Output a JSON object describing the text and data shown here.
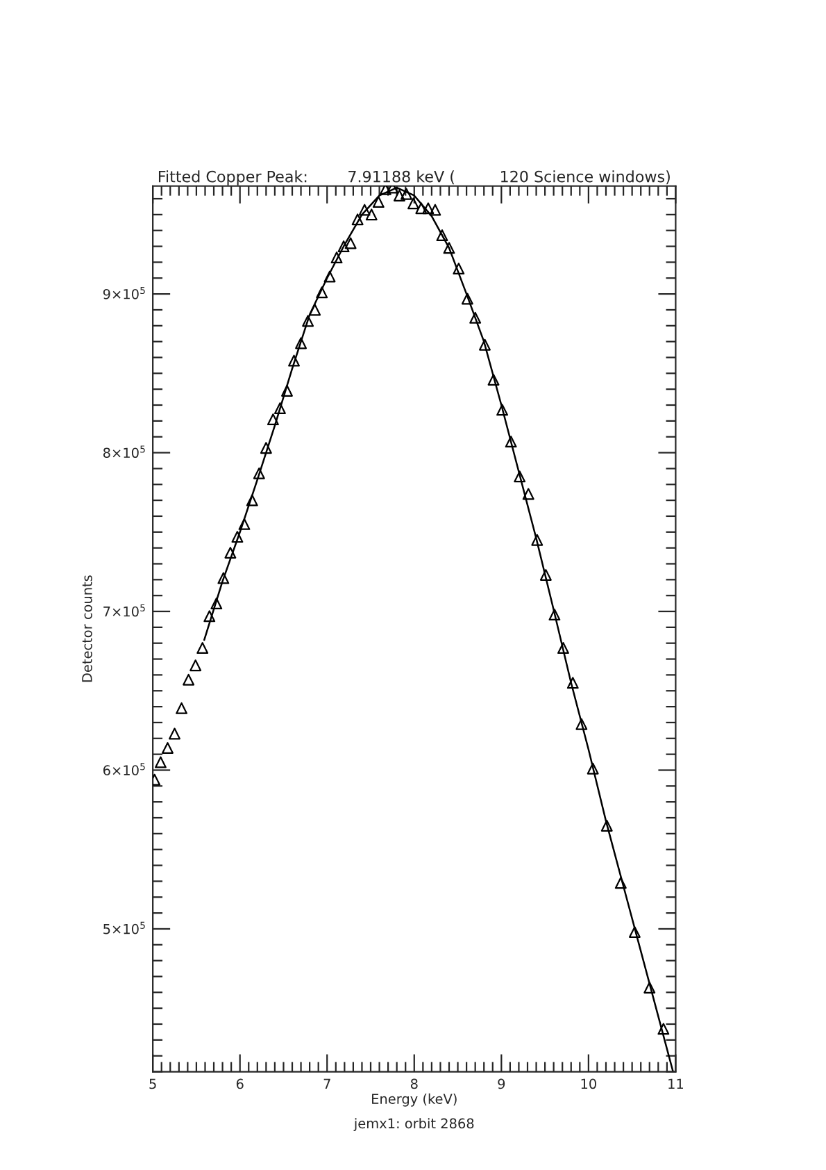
{
  "chart_data": {
    "type": "scatter",
    "title": "Fitted Copper Peak:        7.91188 keV (         120 Science windows)",
    "xlabel": "Energy (keV)",
    "ylabel": "Detector counts",
    "annotations": [
      "jemx1: orbit 2868"
    ],
    "xlim": [
      5,
      11
    ],
    "xticks": [
      5,
      6,
      7,
      8,
      9,
      10,
      11
    ],
    "ylim": [
      410000,
      968000
    ],
    "yticks": [
      {
        "value": 500000,
        "label": "5×10$^{5}$"
      },
      {
        "value": 600000,
        "label": "6×10$^{5}$"
      },
      {
        "value": 700000,
        "label": "7×10$^{5}$"
      },
      {
        "value": 800000,
        "label": "8×10$^{5}$"
      },
      {
        "value": 900000,
        "label": "9×10$^{5}$"
      }
    ],
    "grid": false,
    "legend": false,
    "marker": "triangle",
    "series": [
      {
        "color": "#000000",
        "x": [
          5.02,
          5.09,
          5.17,
          5.25,
          5.33,
          5.41,
          5.49,
          5.57,
          5.65,
          5.73,
          5.81,
          5.89,
          5.97,
          6.05,
          6.14,
          6.22,
          6.3,
          6.38,
          6.46,
          6.54,
          6.62,
          6.7,
          6.78,
          6.86,
          6.94,
          7.03,
          7.11,
          7.19,
          7.27,
          7.35,
          7.43,
          7.51,
          7.59,
          7.67,
          7.75,
          7.83,
          7.91,
          7.99,
          8.08,
          8.16,
          8.24,
          8.32,
          8.4,
          8.51,
          8.61,
          8.7,
          8.81,
          8.91,
          9.01,
          9.11,
          9.21,
          9.31,
          9.41,
          9.51,
          9.61,
          9.71,
          9.82,
          9.92,
          10.05,
          10.21,
          10.37,
          10.53,
          10.7,
          10.86
        ],
        "values": [
          594000,
          605000,
          614000,
          623000,
          639000,
          657000,
          666000,
          677000,
          697000,
          705000,
          721000,
          737000,
          747000,
          755000,
          770000,
          787000,
          803000,
          821000,
          828000,
          839000,
          858000,
          869000,
          883000,
          890000,
          901000,
          911000,
          923000,
          930000,
          932000,
          947000,
          953000,
          950000,
          958000,
          966000,
          967000,
          962000,
          963000,
          957000,
          954000,
          954000,
          953000,
          937000,
          929000,
          916000,
          897000,
          885000,
          868000,
          846000,
          827000,
          807000,
          785000,
          774000,
          745000,
          723000,
          698000,
          677000,
          655000,
          629000,
          601000,
          565000,
          529000,
          498000,
          463000,
          437000
        ]
      },
      {
        "type": "line",
        "color": "#000000",
        "marker": "none",
        "line_style": "solid",
        "x": [
          5.59,
          5.8,
          6.0,
          6.2,
          6.4,
          6.6,
          6.8,
          7.0,
          7.2,
          7.4,
          7.6,
          7.8,
          8.0,
          8.2,
          8.4,
          8.6,
          8.8,
          9.0,
          9.2,
          9.4,
          9.6,
          9.8,
          10.0,
          10.2,
          10.4,
          10.6,
          10.8,
          10.97
        ],
        "values": [
          682000,
          719000,
          750000,
          783000,
          817000,
          853000,
          887000,
          910000,
          931000,
          950000,
          962000,
          967000,
          962000,
          949000,
          929000,
          900000,
          870000,
          830000,
          788000,
          746000,
          701000,
          655000,
          613000,
          568000,
          527000,
          486000,
          445000,
          410000
        ]
      }
    ]
  }
}
